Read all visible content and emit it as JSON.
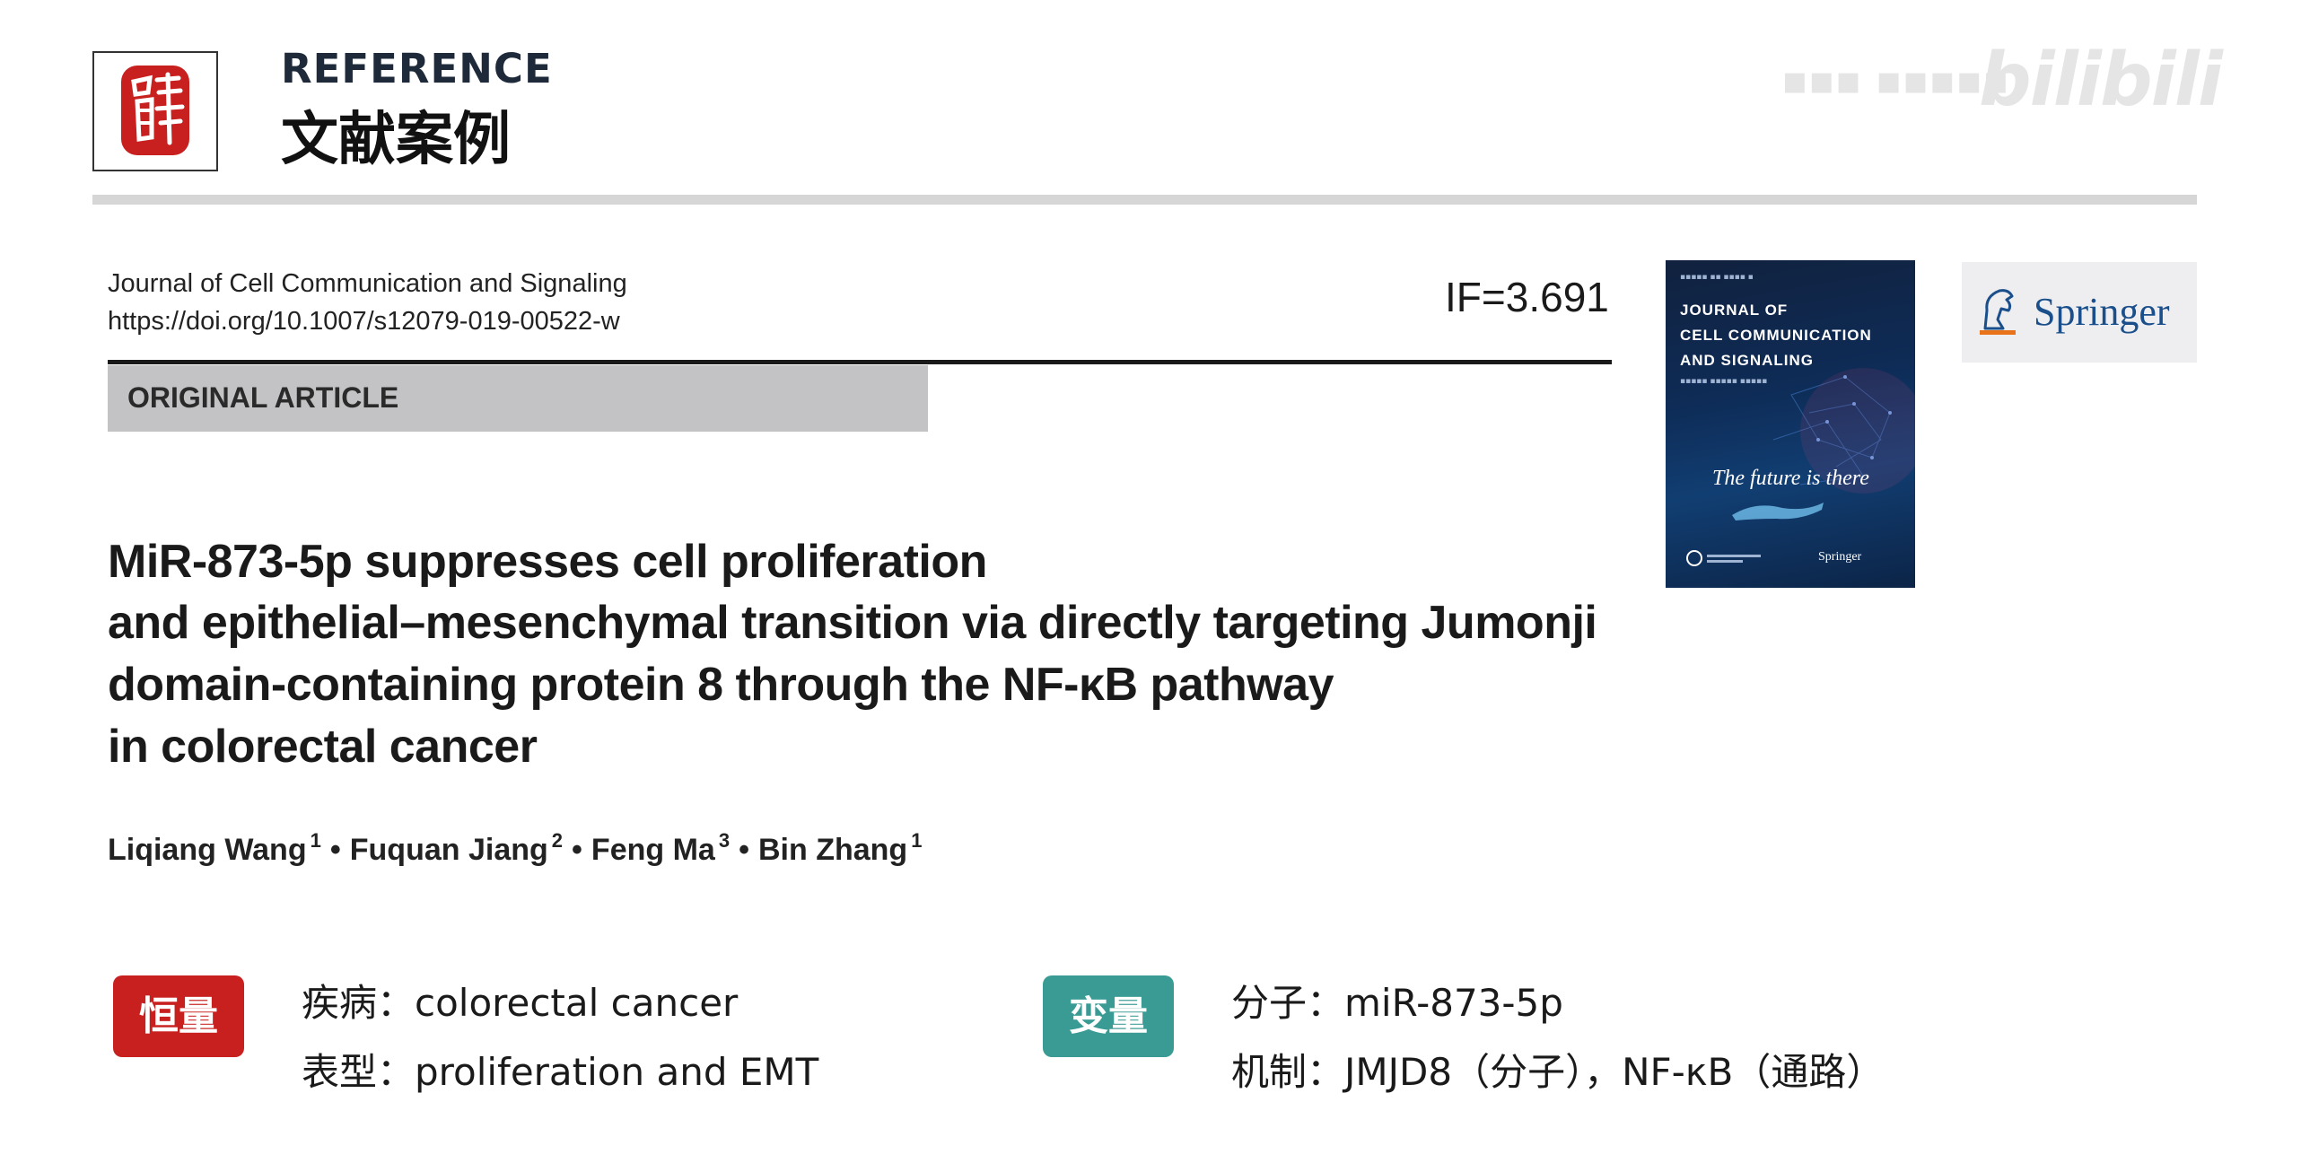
{
  "header": {
    "seal_icon": "seal-character-icon",
    "seal_color": "#c8201f",
    "title_en": "REFERENCE",
    "title_cn": "文献案例",
    "watermark_logo": "bilibili"
  },
  "article": {
    "journal_name": "Journal of Cell Communication and Signaling",
    "doi": "https://doi.org/10.1007/s12079-019-00522-w",
    "impact_factor": "IF=3.691",
    "type": "ORIGINAL ARTICLE",
    "title_lines": [
      "MiR-873-5p suppresses cell proliferation",
      "and epithelial–mesenchymal transition via directly targeting Jumonji",
      "domain-containing protein 8 through the NF-κB pathway",
      "in colorectal cancer"
    ],
    "authors": [
      {
        "name": "Liqiang Wang",
        "affiliation": "1"
      },
      {
        "name": "Fuquan Jiang",
        "affiliation": "2"
      },
      {
        "name": "Feng Ma",
        "affiliation": "3"
      },
      {
        "name": "Bin Zhang",
        "affiliation": "1"
      }
    ],
    "author_separator": "•"
  },
  "cover": {
    "title_lines": [
      "JOURNAL OF",
      "CELL COMMUNICATION",
      "AND SIGNALING"
    ],
    "tagline": "The future is there",
    "publisher_mark": "Springer"
  },
  "publisher": {
    "name": "Springer",
    "logo_icon": "springer-horse-icon",
    "color": "#1a4f8c"
  },
  "summary": {
    "constant_label": "恒量",
    "constant_color": "#c8201f",
    "constant_items": [
      "疾病：colorectal cancer",
      "表型：proliferation and EMT"
    ],
    "variable_label": "变量",
    "variable_color": "#3a9a94",
    "variable_items": [
      "分子：miR-873-5p",
      "机制：JMJD8（分子），NF-κB（通路）"
    ]
  }
}
